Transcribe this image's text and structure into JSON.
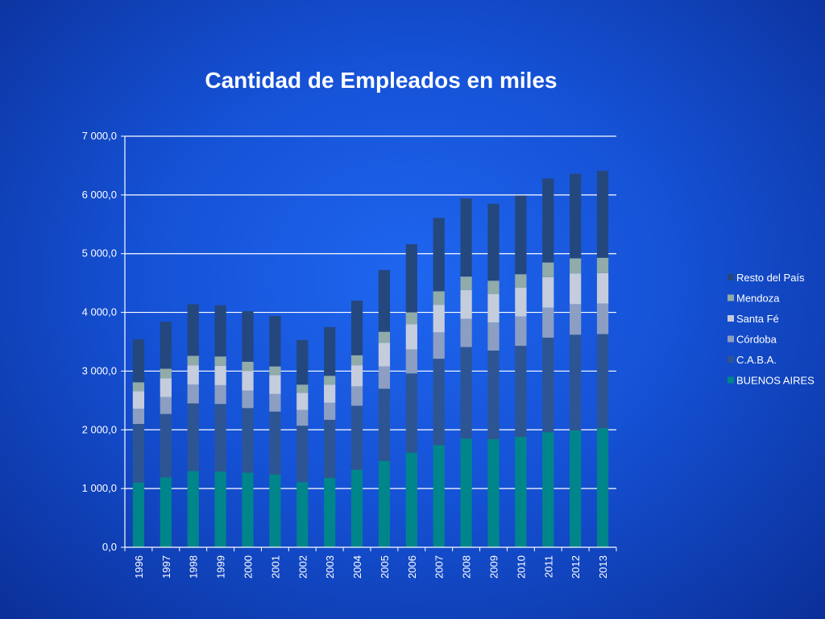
{
  "chart_data": {
    "type": "bar",
    "stacked": true,
    "title": "Cantidad de Empleados en miles",
    "xlabel": "",
    "ylabel": "",
    "ylim": [
      0,
      7000
    ],
    "yticks": [
      0,
      1000,
      2000,
      3000,
      4000,
      5000,
      6000,
      7000
    ],
    "ytick_labels": [
      "0,0",
      "1 000,0",
      "2 000,0",
      "3 000,0",
      "4 000,0",
      "5 000,0",
      "6 000,0",
      "7 000,0"
    ],
    "grid": true,
    "legend_position": "right",
    "categories": [
      "1996",
      "1997",
      "1998",
      "1999",
      "2000",
      "2001",
      "2002",
      "2003",
      "2004",
      "2005",
      "2006",
      "2007",
      "2008",
      "2009",
      "2010",
      "2011",
      "2012",
      "2013"
    ],
    "series": [
      {
        "name": "BUENOS AIRES",
        "color": "#00868a",
        "values": [
          1100,
          1190,
          1300,
          1290,
          1270,
          1240,
          1110,
          1180,
          1320,
          1470,
          1610,
          1740,
          1850,
          1840,
          1880,
          1960,
          1990,
          2030
        ]
      },
      {
        "name": "C.A.B.A.",
        "color": "#2e5593",
        "values": [
          1000,
          1080,
          1150,
          1150,
          1100,
          1070,
          960,
          990,
          1090,
          1230,
          1350,
          1470,
          1560,
          1510,
          1550,
          1610,
          1630,
          1600
        ]
      },
      {
        "name": "Córdoba",
        "color": "#8c9ec2",
        "values": [
          260,
          290,
          320,
          320,
          300,
          300,
          270,
          290,
          330,
          380,
          410,
          450,
          480,
          480,
          500,
          510,
          520,
          520
        ]
      },
      {
        "name": "Santa Fé",
        "color": "#c5ccdc",
        "values": [
          300,
          320,
          330,
          330,
          330,
          320,
          290,
          310,
          360,
          400,
          430,
          470,
          490,
          480,
          490,
          520,
          520,
          520
        ]
      },
      {
        "name": "Mendoza",
        "color": "#90aba8",
        "values": [
          150,
          160,
          160,
          160,
          160,
          150,
          140,
          150,
          170,
          190,
          200,
          230,
          230,
          230,
          230,
          250,
          260,
          260
        ]
      },
      {
        "name": "Resto del País",
        "color": "#24477e",
        "values": [
          730,
          800,
          880,
          870,
          860,
          860,
          760,
          830,
          930,
          1050,
          1160,
          1250,
          1330,
          1310,
          1340,
          1430,
          1440,
          1480
        ]
      }
    ]
  }
}
